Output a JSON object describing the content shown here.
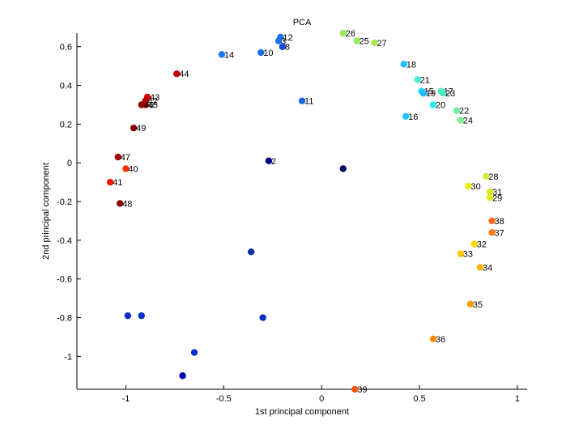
{
  "chart_data": {
    "type": "scatter",
    "title": "PCA",
    "xlabel": "1st principal component",
    "ylabel": "2nd principal component",
    "xlim": [
      -1.25,
      1.05
    ],
    "ylim": [
      -1.17,
      0.67
    ],
    "xticks": [
      -1,
      -0.5,
      0,
      0.5,
      1
    ],
    "xtick_labels": [
      "-1",
      "-0.5",
      "0",
      "0.5",
      "1"
    ],
    "yticks": [
      0.6,
      0.4,
      0.2,
      0,
      -0.2,
      -0.4,
      -0.6,
      -0.8,
      -1
    ],
    "ytick_labels": [
      "0.6",
      "0.4",
      "0.2",
      "0",
      "-0.2",
      "-0.4",
      "-0.6",
      "-0.8",
      "-1"
    ],
    "grid": false,
    "points": [
      {
        "label": "",
        "x": -0.71,
        "y": -1.1,
        "color": "#0000a8"
      },
      {
        "label": "",
        "x": -0.65,
        "y": -0.98,
        "color": "#0a2fc8"
      },
      {
        "label": "",
        "x": -0.99,
        "y": -0.79,
        "color": "#0a2fc8"
      },
      {
        "label": "",
        "x": -0.92,
        "y": -0.79,
        "color": "#0a2fc8"
      },
      {
        "label": "",
        "x": -0.3,
        "y": -0.8,
        "color": "#0a2fc8"
      },
      {
        "label": "",
        "x": -0.36,
        "y": -0.46,
        "color": "#0a2db0"
      },
      {
        "label": "2",
        "x": -0.27,
        "y": 0.01,
        "color": "#00008b"
      },
      {
        "label": "",
        "x": 0.11,
        "y": -0.03,
        "color": "#00006a"
      },
      {
        "label": "11",
        "x": -0.1,
        "y": 0.32,
        "color": "#1565e0"
      },
      {
        "label": "14",
        "x": -0.51,
        "y": 0.56,
        "color": "#1e78ff"
      },
      {
        "label": "10",
        "x": -0.31,
        "y": 0.57,
        "color": "#1a6cf0"
      },
      {
        "label": "12",
        "x": -0.21,
        "y": 0.65,
        "color": "#1f70ff"
      },
      {
        "label": "3",
        "x": -0.22,
        "y": 0.63,
        "color": "#1e6ef0"
      },
      {
        "label": "8",
        "x": -0.2,
        "y": 0.6,
        "color": "#1450d8"
      },
      {
        "label": "26",
        "x": 0.11,
        "y": 0.67,
        "color": "#98ee58"
      },
      {
        "label": "25",
        "x": 0.18,
        "y": 0.63,
        "color": "#90ee60"
      },
      {
        "label": "27",
        "x": 0.27,
        "y": 0.62,
        "color": "#a8ee50"
      },
      {
        "label": "18",
        "x": 0.42,
        "y": 0.51,
        "color": "#20c0ff"
      },
      {
        "label": "21",
        "x": 0.49,
        "y": 0.43,
        "color": "#40f0d8"
      },
      {
        "label": "15",
        "x": 0.51,
        "y": 0.37,
        "color": "#20d8ff"
      },
      {
        "label": "19",
        "x": 0.52,
        "y": 0.36,
        "color": "#20b8ff"
      },
      {
        "label": "17",
        "x": 0.61,
        "y": 0.37,
        "color": "#50f0c0"
      },
      {
        "label": "23",
        "x": 0.62,
        "y": 0.36,
        "color": "#48e8c8"
      },
      {
        "label": "20",
        "x": 0.57,
        "y": 0.3,
        "color": "#30e8e8"
      },
      {
        "label": "22",
        "x": 0.69,
        "y": 0.27,
        "color": "#70f0a0"
      },
      {
        "label": "24",
        "x": 0.71,
        "y": 0.22,
        "color": "#80f090"
      },
      {
        "label": "16",
        "x": 0.43,
        "y": 0.24,
        "color": "#20c8ff"
      },
      {
        "label": "28",
        "x": 0.84,
        "y": -0.07,
        "color": "#c8f040"
      },
      {
        "label": "30",
        "x": 0.75,
        "y": -0.12,
        "color": "#e8f000"
      },
      {
        "label": "31",
        "x": 0.86,
        "y": -0.15,
        "color": "#e0e820"
      },
      {
        "label": "29",
        "x": 0.86,
        "y": -0.18,
        "color": "#d8f020"
      },
      {
        "label": "38",
        "x": 0.87,
        "y": -0.3,
        "color": "#ff6820"
      },
      {
        "label": "37",
        "x": 0.87,
        "y": -0.36,
        "color": "#ff7a10"
      },
      {
        "label": "32",
        "x": 0.78,
        "y": -0.42,
        "color": "#ffd800"
      },
      {
        "label": "33",
        "x": 0.71,
        "y": -0.47,
        "color": "#ffc800"
      },
      {
        "label": "34",
        "x": 0.81,
        "y": -0.54,
        "color": "#ffb800"
      },
      {
        "label": "35",
        "x": 0.76,
        "y": -0.73,
        "color": "#ff9c00"
      },
      {
        "label": "36",
        "x": 0.57,
        "y": -0.91,
        "color": "#ff8c00"
      },
      {
        "label": "39",
        "x": 0.17,
        "y": -1.17,
        "color": "#ff5500"
      },
      {
        "label": "44",
        "x": -0.74,
        "y": 0.46,
        "color": "#c00000"
      },
      {
        "label": "43",
        "x": -0.89,
        "y": 0.34,
        "color": "#d80000"
      },
      {
        "label": "42",
        "x": -0.9,
        "y": 0.32,
        "color": "#b80000"
      },
      {
        "label": "45",
        "x": -0.9,
        "y": 0.3,
        "color": "#b00000"
      },
      {
        "label": "46",
        "x": -0.92,
        "y": 0.3,
        "color": "#900000"
      },
      {
        "label": "49",
        "x": -0.96,
        "y": 0.18,
        "color": "#800000"
      },
      {
        "label": "47",
        "x": -1.04,
        "y": 0.03,
        "color": "#a00000"
      },
      {
        "label": "40",
        "x": -1.0,
        "y": -0.03,
        "color": "#ff3000"
      },
      {
        "label": "41",
        "x": -1.08,
        "y": -0.1,
        "color": "#ff1800"
      },
      {
        "label": "48",
        "x": -1.03,
        "y": -0.21,
        "color": "#880000"
      }
    ]
  }
}
